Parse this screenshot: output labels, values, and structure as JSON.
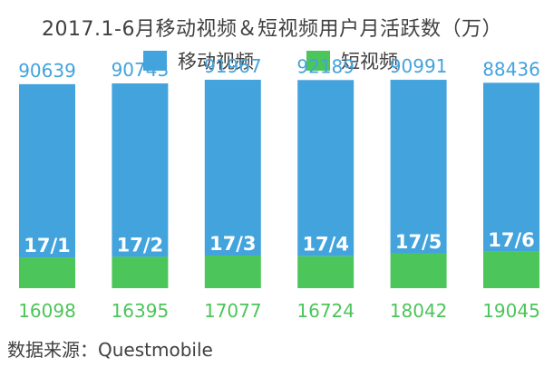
{
  "title": "2017.1-6月移动视频＆短视频用户月活跃数（万）",
  "source": "数据来源：Questmobile",
  "colors": {
    "mobile_video": "#43A3DD",
    "short_video": "#4CC55A",
    "text": "#404040"
  },
  "chart_data": {
    "type": "bar",
    "stacked": true,
    "title": "2017.1-6月移动视频＆短视频用户月活跃数（万）",
    "categories": [
      "17/1",
      "17/2",
      "17/3",
      "17/4",
      "17/5",
      "17/6"
    ],
    "series": [
      {
        "name": "移动视频",
        "values": [
          90639,
          90743,
          91967,
          92189,
          90991,
          88436
        ],
        "color": "#43A3DD"
      },
      {
        "name": "短视频",
        "values": [
          16098,
          16395,
          17077,
          16724,
          18042,
          19045
        ],
        "color": "#4CC55A"
      }
    ],
    "legend": "top-center",
    "grid": false
  }
}
